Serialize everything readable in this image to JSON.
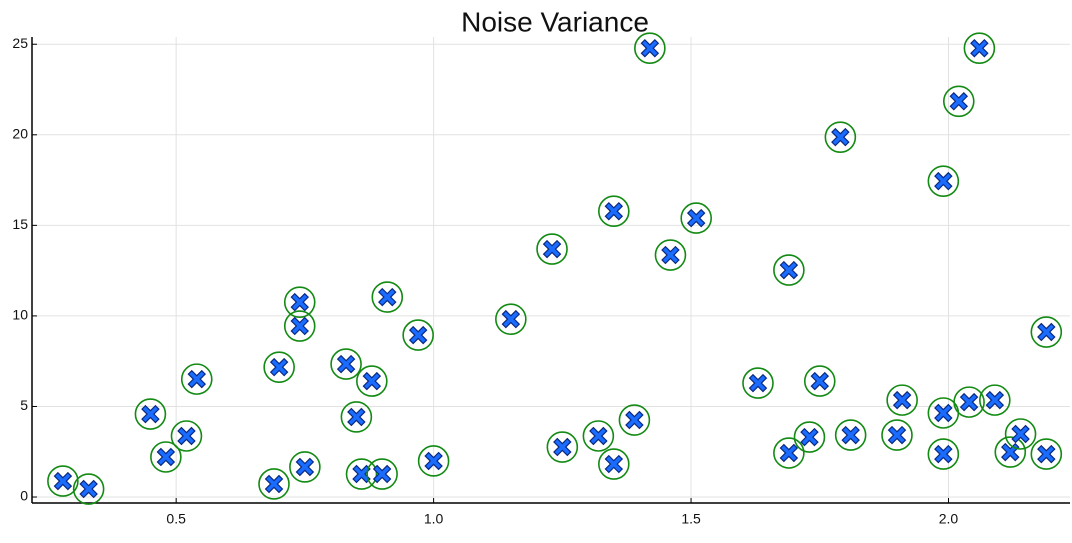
{
  "chart_data": {
    "type": "scatter",
    "title": "Noise Variance",
    "x": [
      0.28,
      0.33,
      0.45,
      0.48,
      0.52,
      0.54,
      0.69,
      0.7,
      0.74,
      0.74,
      0.75,
      0.83,
      0.85,
      0.86,
      0.88,
      0.9,
      0.91,
      0.97,
      1.0,
      1.15,
      1.23,
      1.25,
      1.32,
      1.35,
      1.35,
      1.39,
      1.42,
      1.46,
      1.51,
      1.63,
      1.69,
      1.69,
      1.73,
      1.75,
      1.79,
      1.81,
      1.9,
      1.91,
      1.99,
      1.99,
      1.99,
      2.02,
      2.04,
      2.06,
      2.09,
      2.12,
      2.14,
      2.19,
      2.19
    ],
    "values": [
      0.88,
      0.44,
      4.58,
      2.21,
      3.37,
      6.51,
      0.72,
      7.17,
      10.76,
      9.44,
      1.66,
      7.34,
      4.42,
      1.27,
      6.4,
      1.27,
      11.04,
      8.94,
      1.99,
      9.82,
      13.69,
      2.76,
      3.37,
      1.82,
      15.78,
      4.25,
      24.78,
      13.36,
      15.4,
      6.29,
      2.43,
      12.53,
      3.31,
      6.4,
      19.87,
      3.42,
      3.42,
      5.35,
      4.64,
      2.37,
      17.44,
      21.85,
      5.24,
      24.78,
      5.35,
      2.48,
      3.48,
      9.11,
      2.37
    ],
    "marker_color": "#1a6cff",
    "ring_color": "#138a13",
    "xlim": [
      0.22,
      2.236
    ],
    "ylim": [
      -0.33,
      25.4
    ],
    "xticks": [
      0.5,
      1.0,
      1.5,
      2.0
    ],
    "yticks": [
      0,
      5,
      10,
      15,
      20,
      25
    ],
    "grid": true
  }
}
